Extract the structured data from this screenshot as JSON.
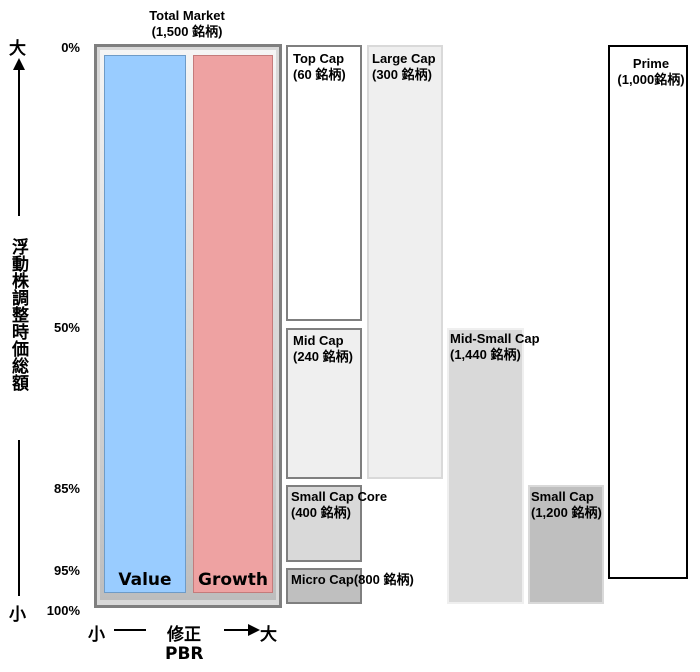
{
  "title": {
    "line1": "Total Market",
    "line2": "(1,500 銘柄)"
  },
  "y_axis": {
    "label": "浮動株調整時価総額",
    "top": "大",
    "bottom": "小",
    "ticks": [
      "0%",
      "50%",
      "85%",
      "95%",
      "100%"
    ]
  },
  "x_axis": {
    "left": "小",
    "right": "大",
    "label1": "修正",
    "label2": "PBR"
  },
  "columns": {
    "value": "Value",
    "growth": "Growth"
  },
  "segments": {
    "topcap": {
      "l1": "Top Cap",
      "l2": "(60 銘柄)"
    },
    "largecap": {
      "l1": "Large Cap",
      "l2": "(300 銘柄)"
    },
    "midcap": {
      "l1": "Mid Cap",
      "l2": "(240 銘柄)"
    },
    "smallcapcore": {
      "l1": "Small Cap Core",
      "l2": "(400 銘柄)"
    },
    "microcap": {
      "l1": "Micro Cap(800 銘柄)"
    },
    "midsmallcap": {
      "l1": "Mid-Small Cap",
      "l2": "(1,440 銘柄)"
    },
    "smallcap": {
      "l1": "Small Cap",
      "l2": "(1,200 銘柄)"
    },
    "prime": {
      "l1": "Prime",
      "l2": "(1,000銘柄)"
    }
  },
  "colors": {
    "value": "#99ccff",
    "growth": "#eea2a2",
    "outer_border": "#7f7f7f",
    "light_fill": "#efefef",
    "mid_fill": "#d9d9d9",
    "dark_fill": "#bfbfbf"
  }
}
